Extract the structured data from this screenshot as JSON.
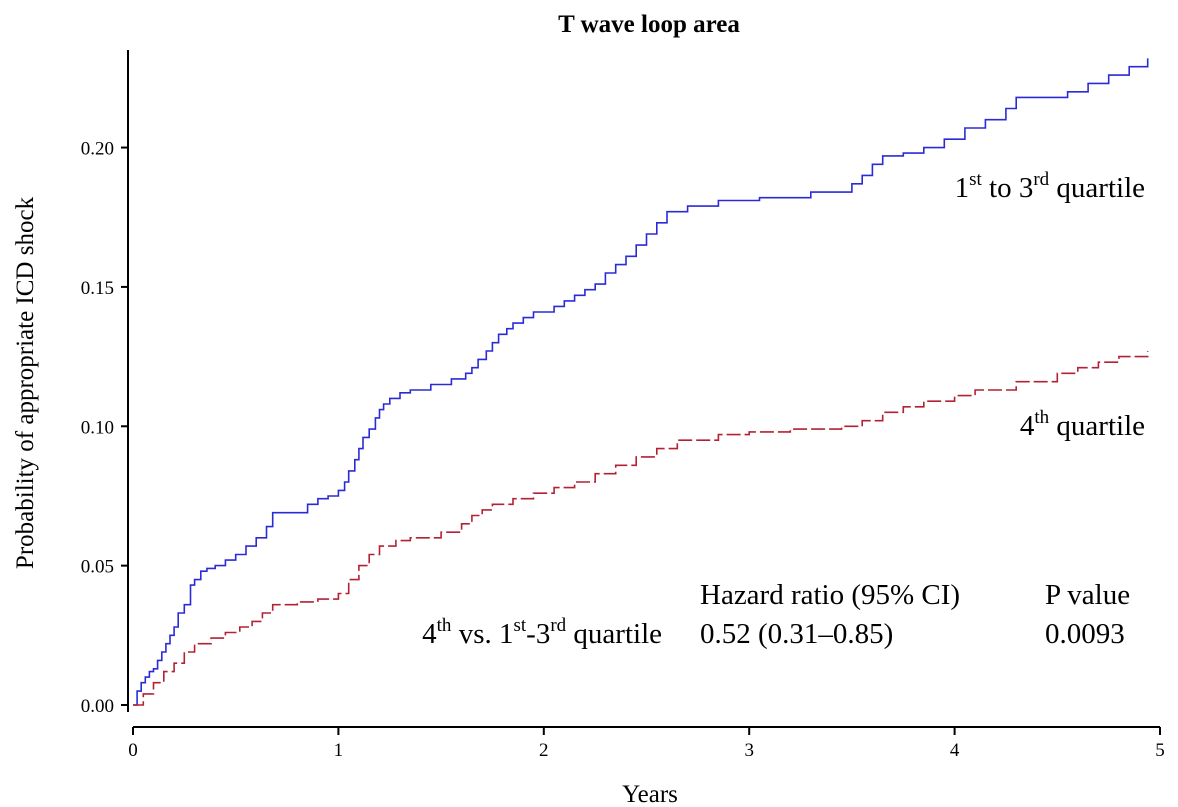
{
  "chart_data": {
    "type": "line",
    "title": "T wave loop area",
    "xlabel": "Years",
    "ylabel": "Probability of appropriate ICD shock",
    "xlim": [
      0,
      5
    ],
    "ylim": [
      0,
      0.235
    ],
    "x_ticks": [
      "0",
      "1",
      "2",
      "3",
      "4",
      "5"
    ],
    "y_ticks": [
      "0.00",
      "0.05",
      "0.10",
      "0.15",
      "0.20"
    ],
    "grid": false,
    "series": [
      {
        "color": "#2b2bd6",
        "x": [
          0,
          0.02,
          0.04,
          0.06,
          0.08,
          0.1,
          0.12,
          0.14,
          0.16,
          0.18,
          0.2,
          0.22,
          0.25,
          0.28,
          0.3,
          0.33,
          0.36,
          0.4,
          0.45,
          0.5,
          0.55,
          0.6,
          0.65,
          0.68,
          0.85,
          0.9,
          0.95,
          1.0,
          1.03,
          1.05,
          1.08,
          1.1,
          1.12,
          1.15,
          1.18,
          1.2,
          1.22,
          1.25,
          1.3,
          1.35,
          1.45,
          1.55,
          1.62,
          1.65,
          1.68,
          1.72,
          1.75,
          1.78,
          1.82,
          1.85,
          1.9,
          1.95,
          2.05,
          2.1,
          2.15,
          2.2,
          2.25,
          2.3,
          2.35,
          2.4,
          2.45,
          2.5,
          2.55,
          2.6,
          2.7,
          2.85,
          3.05,
          3.3,
          3.5,
          3.55,
          3.6,
          3.65,
          3.75,
          3.85,
          3.95,
          4.05,
          4.15,
          4.25,
          4.3,
          4.55,
          4.65,
          4.75,
          4.85,
          4.94
        ],
        "values": [
          0.0,
          0.005,
          0.008,
          0.01,
          0.012,
          0.013,
          0.016,
          0.019,
          0.022,
          0.025,
          0.028,
          0.033,
          0.036,
          0.043,
          0.045,
          0.048,
          0.049,
          0.05,
          0.052,
          0.054,
          0.057,
          0.06,
          0.064,
          0.069,
          0.072,
          0.074,
          0.075,
          0.077,
          0.08,
          0.084,
          0.088,
          0.092,
          0.096,
          0.099,
          0.103,
          0.106,
          0.108,
          0.11,
          0.112,
          0.113,
          0.115,
          0.117,
          0.119,
          0.121,
          0.124,
          0.127,
          0.13,
          0.133,
          0.135,
          0.137,
          0.139,
          0.141,
          0.143,
          0.145,
          0.147,
          0.149,
          0.151,
          0.155,
          0.158,
          0.161,
          0.165,
          0.169,
          0.173,
          0.177,
          0.179,
          0.181,
          0.182,
          0.184,
          0.187,
          0.19,
          0.194,
          0.197,
          0.198,
          0.2,
          0.203,
          0.207,
          0.21,
          0.214,
          0.218,
          0.22,
          0.223,
          0.226,
          0.229,
          0.232
        ]
      },
      {
        "color": "#b22234",
        "x": [
          0,
          0.05,
          0.1,
          0.15,
          0.2,
          0.25,
          0.3,
          0.38,
          0.45,
          0.52,
          0.58,
          0.63,
          0.68,
          0.8,
          0.9,
          1.0,
          1.05,
          1.1,
          1.15,
          1.2,
          1.28,
          1.35,
          1.5,
          1.6,
          1.65,
          1.7,
          1.75,
          1.85,
          1.95,
          2.05,
          2.15,
          2.25,
          2.35,
          2.45,
          2.55,
          2.65,
          2.85,
          3.0,
          3.2,
          3.45,
          3.55,
          3.65,
          3.75,
          3.85,
          4.0,
          4.1,
          4.3,
          4.5,
          4.6,
          4.7,
          4.8,
          4.94
        ],
        "values": [
          0.0,
          0.004,
          0.008,
          0.012,
          0.015,
          0.019,
          0.022,
          0.024,
          0.026,
          0.028,
          0.03,
          0.033,
          0.036,
          0.037,
          0.038,
          0.04,
          0.045,
          0.05,
          0.054,
          0.057,
          0.059,
          0.06,
          0.062,
          0.065,
          0.068,
          0.07,
          0.072,
          0.074,
          0.076,
          0.078,
          0.08,
          0.083,
          0.086,
          0.089,
          0.092,
          0.095,
          0.097,
          0.098,
          0.099,
          0.1,
          0.102,
          0.105,
          0.107,
          0.109,
          0.111,
          0.113,
          0.116,
          0.119,
          0.121,
          0.123,
          0.125,
          0.127
        ]
      }
    ]
  },
  "annotations": {
    "upper_curve_label": {
      "a": "1",
      "a_sup": "st",
      "b": " to 3",
      "b_sup": "rd",
      "c": " quartile"
    },
    "lower_curve_label": {
      "a": "4",
      "a_sup": "th",
      "c": " quartile"
    },
    "comparison": {
      "a": "4",
      "a_sup": "th",
      "b": " vs. 1",
      "b_sup": "st",
      "c": "-3",
      "c_sup": "rd",
      "d": " quartile"
    },
    "hazard_header": "Hazard ratio (95% CI)",
    "hazard_value": "0.52 (0.31–0.85)",
    "p_header": "P value",
    "p_value": "0.0093"
  }
}
